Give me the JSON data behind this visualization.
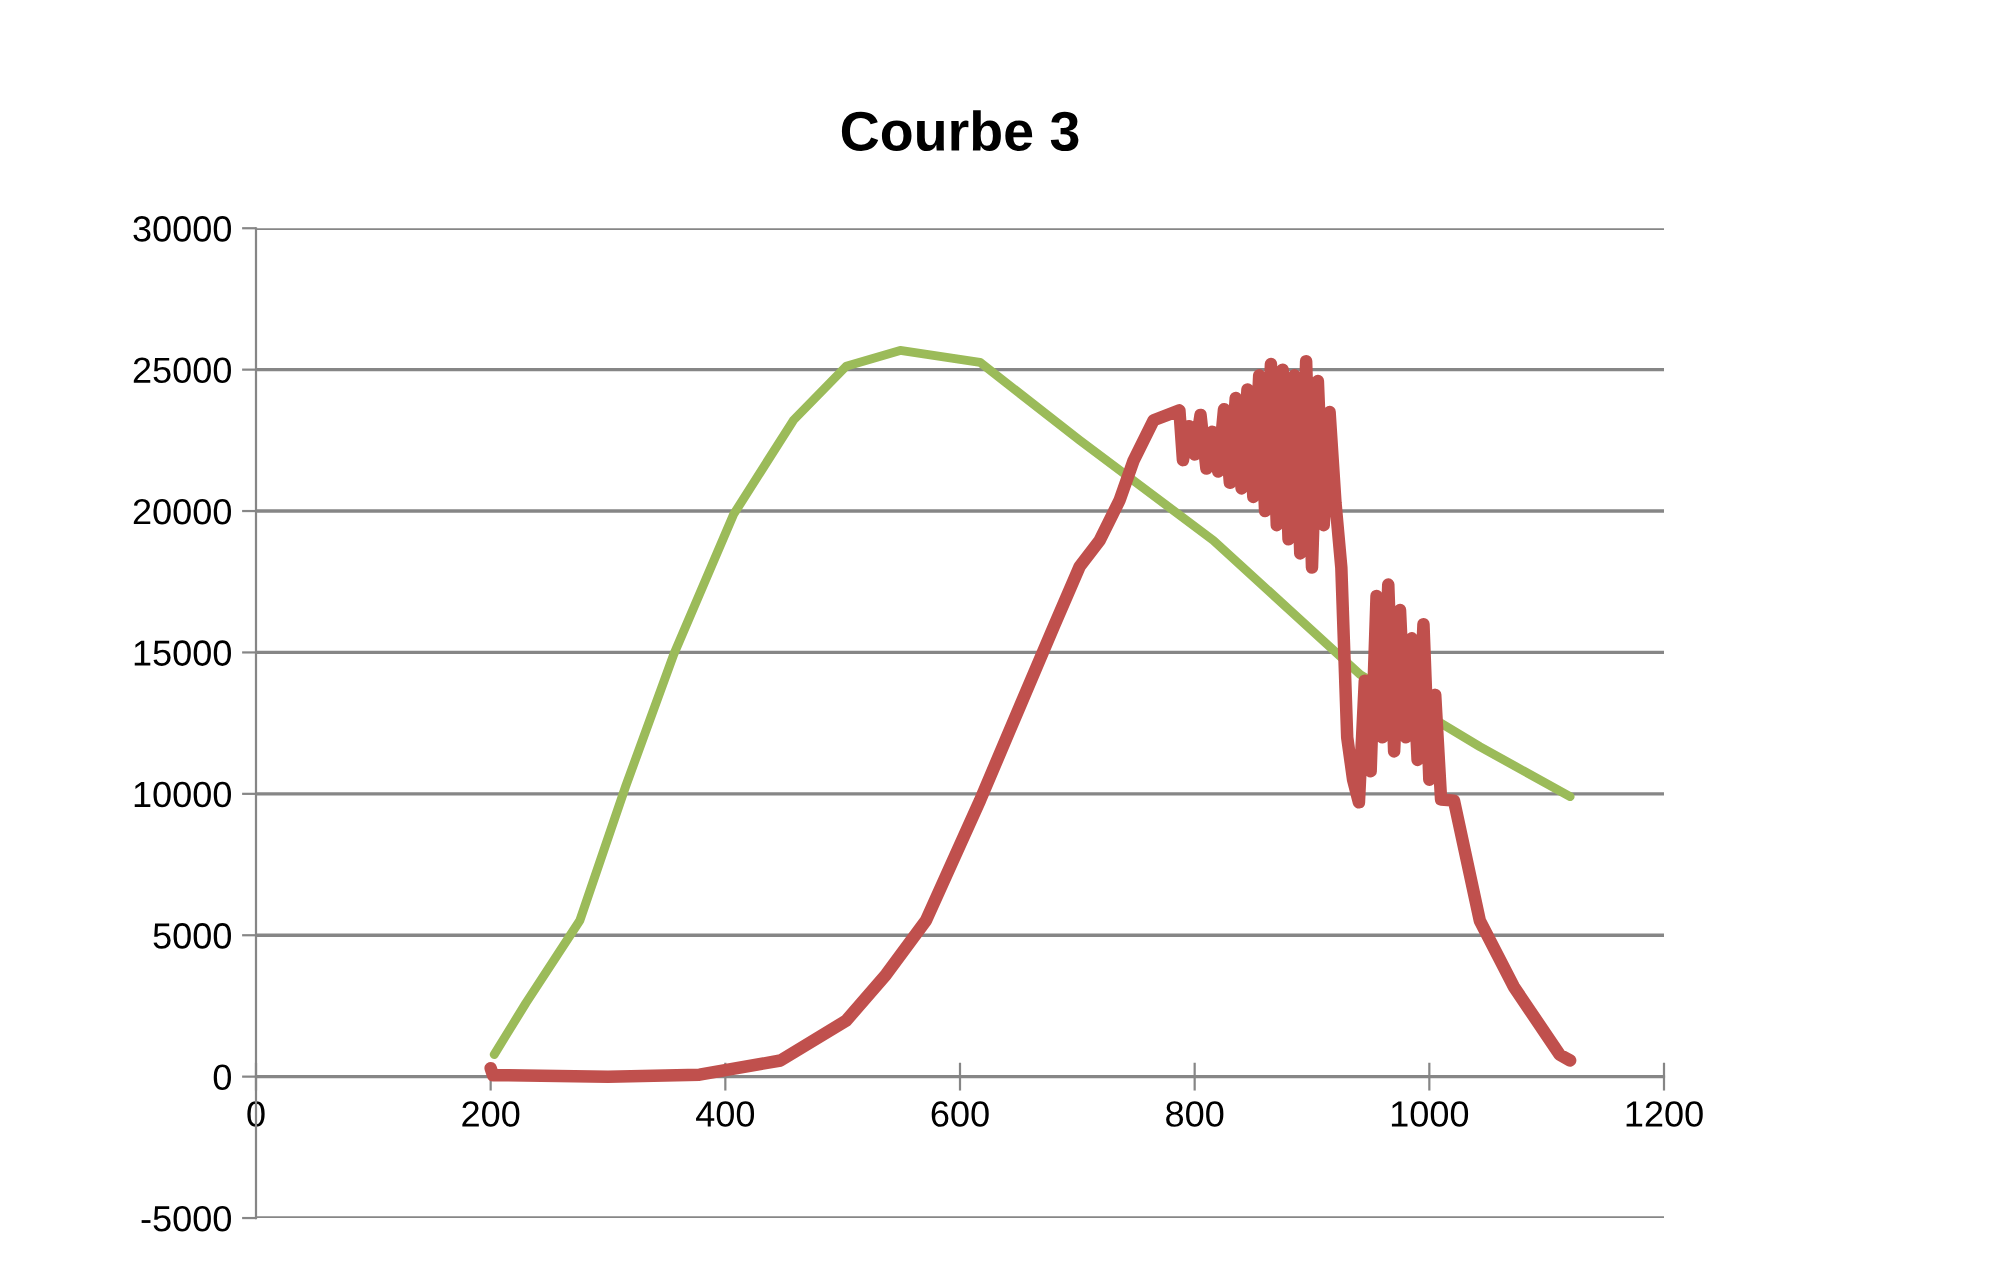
{
  "chart_data": {
    "type": "line",
    "title": "Courbe 3",
    "xlim": [
      0,
      1200
    ],
    "xticks": [
      0,
      200,
      400,
      600,
      800,
      1000,
      1200
    ],
    "ylim": [
      -5000,
      30000
    ],
    "yticks": [
      -5000,
      0,
      5000,
      10000,
      15000,
      20000,
      25000,
      30000
    ],
    "grid": "y",
    "legend": false,
    "marker": "none",
    "line_style": "solid",
    "series": [
      {
        "color": "#9bbb59",
        "x": [
          203,
          230,
          276,
          315,
          356,
          407,
          458,
          503,
          549,
          617,
          702,
          816,
          941,
          1043,
          1120
        ],
        "values": [
          780,
          2600,
          5520,
          10260,
          14930,
          19880,
          23210,
          25120,
          25680,
          25260,
          22500,
          18960,
          14220,
          11670,
          9900
        ]
      },
      {
        "color": "#c0504d",
        "x": [
          200,
          202,
          210,
          300,
          378,
          447,
          503,
          537,
          571,
          617,
          651,
          680,
          702,
          719,
          736,
          748,
          765,
          787,
          790,
          795,
          800,
          805,
          810,
          815,
          820,
          825,
          830,
          835,
          840,
          845,
          850,
          855,
          860,
          865,
          870,
          875,
          880,
          885,
          890,
          895,
          900,
          905,
          910,
          915,
          920,
          925,
          930,
          935,
          940,
          945,
          950,
          955,
          960,
          965,
          970,
          975,
          980,
          985,
          990,
          995,
          1000,
          1005,
          1010,
          1021,
          1043,
          1072,
          1111,
          1120
        ],
        "values": [
          300,
          50,
          50,
          0,
          70,
          570,
          1980,
          3610,
          5520,
          9760,
          13090,
          15920,
          18040,
          18960,
          20380,
          21790,
          23210,
          23560,
          21800,
          23000,
          22000,
          23400,
          21500,
          22800,
          21400,
          23600,
          21000,
          24000,
          20800,
          24300,
          20500,
          24800,
          20000,
          25200,
          19500,
          25000,
          19000,
          24800,
          18500,
          25300,
          18000,
          24600,
          19500,
          23500,
          20300,
          18000,
          12000,
          10500,
          9700,
          14000,
          10800,
          17000,
          12000,
          17400,
          11500,
          16500,
          12000,
          15500,
          11200,
          16000,
          10500,
          13500,
          9800,
          9760,
          5520,
          3180,
          780,
          570
        ]
      }
    ]
  }
}
